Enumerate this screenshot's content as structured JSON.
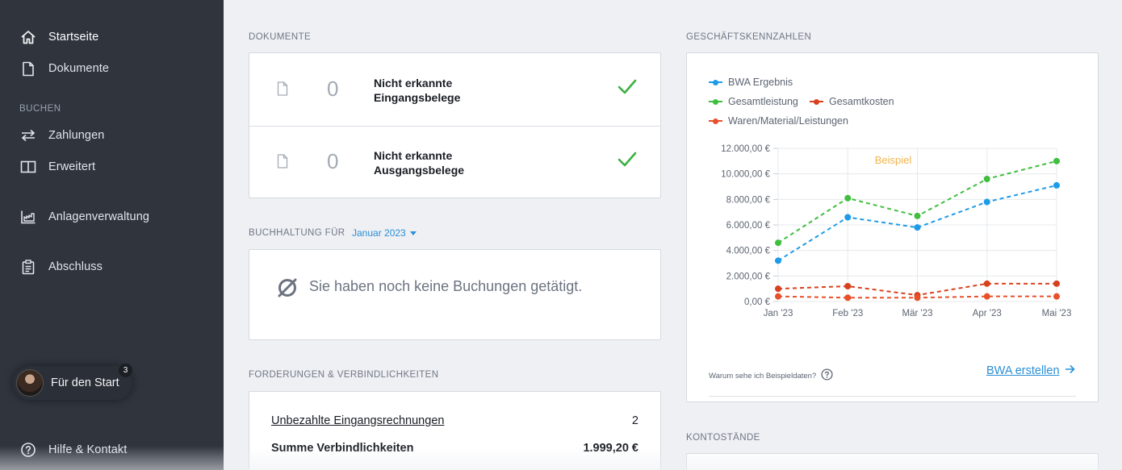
{
  "sidebar": {
    "nav_home": "Startseite",
    "nav_documents": "Dokumente",
    "section_booking": "BUCHEN",
    "nav_payments": "Zahlungen",
    "nav_advanced": "Erweitert",
    "nav_assets": "Anlagenverwaltung",
    "nav_closing": "Abschluss",
    "getting_started": "Für den Start",
    "getting_started_badge": "3",
    "help": "Hilfe & Kontakt"
  },
  "documents": {
    "title": "DOKUMENTE",
    "rows": [
      {
        "count": "0",
        "label": "Nicht erkannte Eingangsbelege",
        "status_icon": "check-icon"
      },
      {
        "count": "0",
        "label": "Nicht erkannte Ausgangsbelege",
        "status_icon": "check-icon"
      }
    ]
  },
  "bookkeeping": {
    "title": "BUCHHALTUNG FÜR",
    "month": "Januar 2023",
    "empty_text": "Sie haben noch keine Buchungen getätigt."
  },
  "receivables": {
    "title": "FORDERUNGEN & VERBINDLICHKEITEN",
    "unpaid_label": "Unbezahlte Eingangsrechnungen",
    "unpaid_count": "2",
    "sum_label": "Summe Verbindlichkeiten",
    "sum_value": "1.999,20 €"
  },
  "kpis": {
    "title": "GESCHÄFTSKENNZAHLEN",
    "why_text": "Warum sehe ich Beispieldaten?",
    "bwa_link": "BWA erstellen",
    "example_label": "Beispiel"
  },
  "balances": {
    "title": "KONTOSTÄNDE"
  },
  "colors": {
    "sidebar_bg": "#2f343d",
    "accent": "#2a8fd6",
    "check_green": "#3cb043",
    "example_orange": "#f0b44c"
  },
  "chart_data": {
    "type": "line",
    "categories": [
      "Jan '23",
      "Feb '23",
      "Mär '23",
      "Apr '23",
      "Mai '23"
    ],
    "ylim": [
      0,
      12000
    ],
    "yticks": [
      "0,00 €",
      "2.000,00 €",
      "4.000,00 €",
      "6.000,00 €",
      "8.000,00 €",
      "10.000,00 €",
      "12.000,00 €"
    ],
    "ytick_values": [
      0,
      2000,
      4000,
      6000,
      8000,
      10000,
      12000
    ],
    "grid": true,
    "legend_position": "top-left",
    "line_style": "dashed",
    "series": [
      {
        "name": "BWA Ergebnis",
        "color": "#1e9be8",
        "values": [
          3200,
          6600,
          5800,
          7800,
          9100
        ]
      },
      {
        "name": "Gesamtleistung",
        "color": "#3fbf3f",
        "values": [
          4600,
          8100,
          6700,
          9600,
          11000
        ]
      },
      {
        "name": "Gesamtkosten",
        "color": "#d9411e",
        "values": [
          1000,
          1200,
          500,
          1400,
          1400
        ]
      },
      {
        "name": "Waren/Material/Leistungen",
        "color": "#e8502a",
        "values": [
          400,
          300,
          300,
          400,
          400
        ]
      }
    ]
  }
}
